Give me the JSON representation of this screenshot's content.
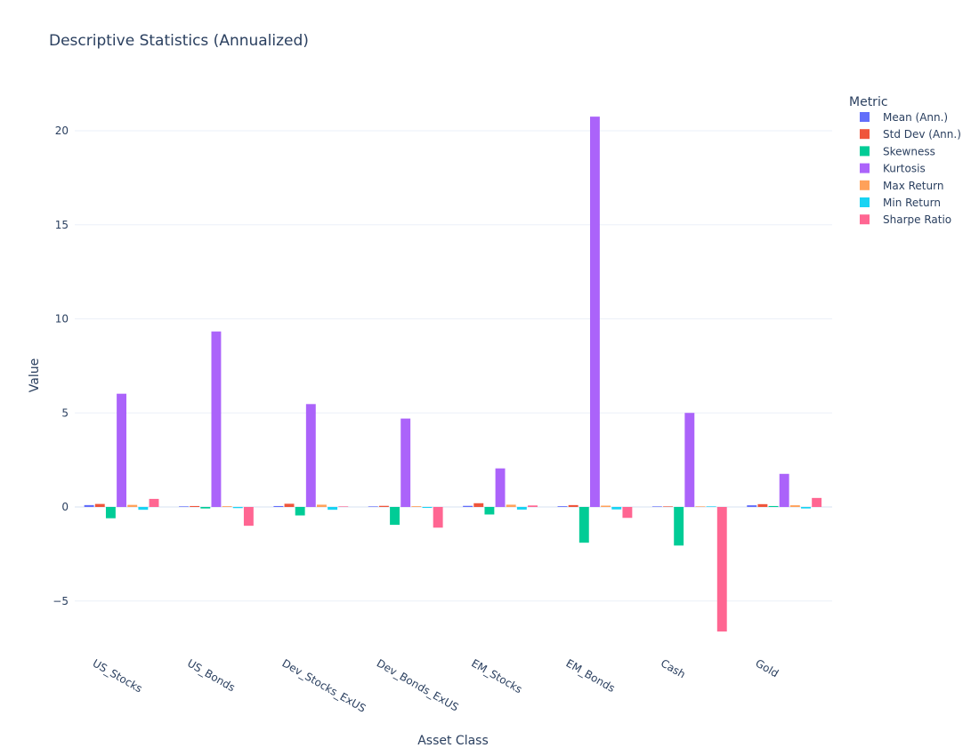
{
  "chart_data": {
    "type": "bar",
    "title": "Descriptive Statistics (Annualized)",
    "xlabel": "Asset Class",
    "ylabel": "Value",
    "ylim": [
      -7.5,
      23
    ],
    "yticks": [
      -5,
      0,
      5,
      10,
      15,
      20
    ],
    "ytick_labels": [
      "−5",
      "0",
      "5",
      "10",
      "15",
      "20"
    ],
    "grid": true,
    "legend_title": "Metric",
    "legend_position": "top-right",
    "categories": [
      "US_Stocks",
      "US_Bonds",
      "Dev_Stocks_ExUS",
      "Dev_Bonds_ExUS",
      "EM_Stocks",
      "EM_Bonds",
      "Cash",
      "Gold"
    ],
    "series": [
      {
        "name": "Mean (Ann.)",
        "color": "#636efa",
        "values": [
          0.1,
          0.03,
          0.05,
          0.02,
          0.06,
          0.04,
          0.01,
          0.09
        ]
      },
      {
        "name": "Std Dev (Ann.)",
        "color": "#ef553b",
        "values": [
          0.16,
          0.05,
          0.17,
          0.06,
          0.2,
          0.1,
          0.01,
          0.15
        ]
      },
      {
        "name": "Skewness",
        "color": "#00cc96",
        "values": [
          -0.6,
          -0.08,
          -0.45,
          -0.95,
          -0.4,
          -1.9,
          -2.05,
          0.05
        ]
      },
      {
        "name": "Kurtosis",
        "color": "#ab63fa",
        "values": [
          6.02,
          9.33,
          5.47,
          4.7,
          2.05,
          20.75,
          5.0,
          1.76
        ]
      },
      {
        "name": "Max Return",
        "color": "#ffa15a",
        "values": [
          0.11,
          0.04,
          0.12,
          0.04,
          0.12,
          0.07,
          0.01,
          0.09
        ]
      },
      {
        "name": "Min Return",
        "color": "#19d3f3",
        "values": [
          -0.15,
          -0.06,
          -0.15,
          -0.05,
          -0.14,
          -0.13,
          0.0,
          -0.08
        ]
      },
      {
        "name": "Sharpe Ratio",
        "color": "#ff6692",
        "values": [
          0.43,
          -1.0,
          0.02,
          -1.1,
          0.08,
          -0.58,
          -6.62,
          0.48
        ]
      }
    ]
  }
}
